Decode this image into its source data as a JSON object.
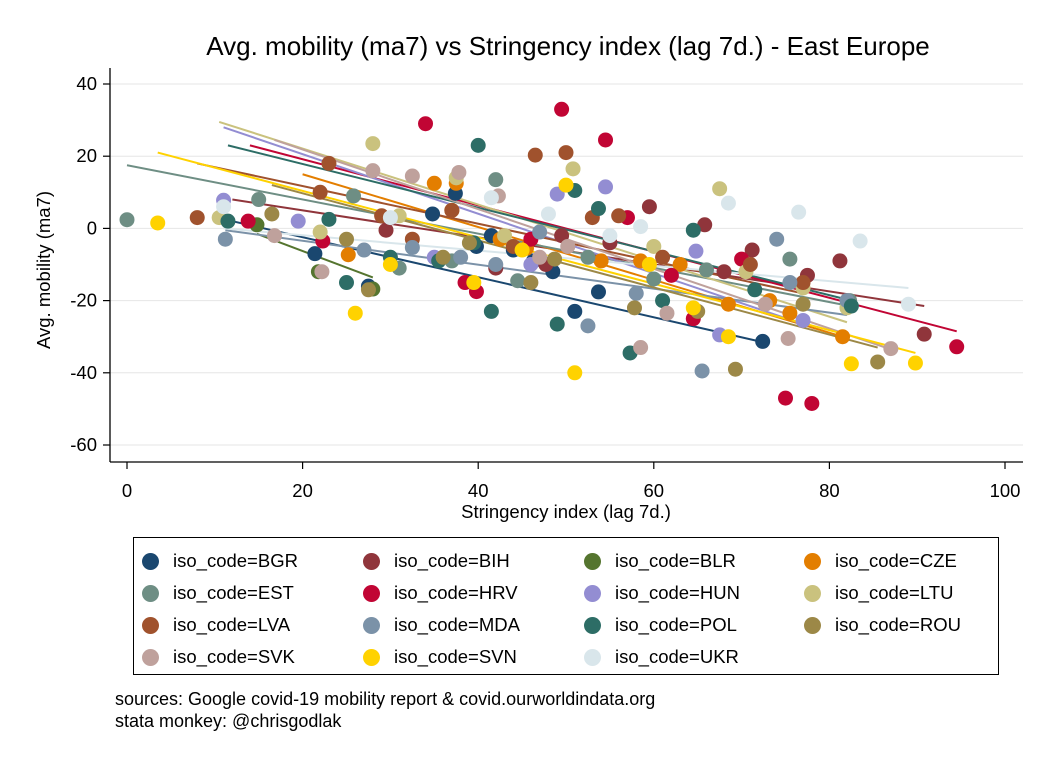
{
  "chart_data": {
    "type": "scatter",
    "title": "Avg. mobility (ma7) vs Stringency index (lag 7d.) - East Europe",
    "xlabel": "Stringency index (lag 7d.)",
    "ylabel": "Avg. mobility (ma7)",
    "xlim": [
      0,
      100
    ],
    "ylim": [
      -60,
      40
    ],
    "x_ticks": [
      "0",
      "20",
      "40",
      "60",
      "80",
      "100"
    ],
    "y_ticks": [
      "40",
      "20",
      "0",
      "-20",
      "-40",
      "-60"
    ],
    "x_tick_values": [
      0,
      20,
      40,
      60,
      80,
      100
    ],
    "y_tick_values": [
      40,
      20,
      0,
      -20,
      -40,
      -60
    ],
    "grid": true,
    "legend_position": "bottom",
    "series": [
      {
        "name": "iso_code=BGR",
        "color": "#1a476f",
        "points": [
          [
            34.8,
            4
          ],
          [
            37.4,
            9.7
          ],
          [
            39.8,
            -5
          ],
          [
            46.3,
            -9
          ],
          [
            48.5,
            -12
          ],
          [
            51,
            -23
          ],
          [
            53.7,
            -17.6
          ],
          [
            72.4,
            -31.3
          ],
          [
            27.5,
            -16
          ],
          [
            21.4,
            -7
          ],
          [
            41.5,
            -2
          ],
          [
            44,
            -6
          ]
        ],
        "fit": [
          [
            12,
            2
          ],
          [
            72.4,
            -31.5
          ]
        ]
      },
      {
        "name": "iso_code=BIH",
        "color": "#90353b",
        "points": [
          [
            29.5,
            -0.5
          ],
          [
            47.7,
            -10
          ],
          [
            49.5,
            -2
          ],
          [
            59.5,
            6
          ],
          [
            65.8,
            1
          ],
          [
            71.2,
            -6
          ],
          [
            77.5,
            -13
          ],
          [
            81.2,
            -9
          ],
          [
            90.8,
            -29.3
          ],
          [
            42,
            -11
          ],
          [
            55,
            -4
          ],
          [
            68,
            -12
          ]
        ],
        "fit": [
          [
            12,
            8
          ],
          [
            90.8,
            -21.5
          ]
        ]
      },
      {
        "name": "iso_code=BLR",
        "color": "#55752f",
        "points": [
          [
            14.8,
            1
          ],
          [
            21.8,
            -12
          ],
          [
            28,
            -16.8
          ]
        ],
        "fit": [
          [
            14.8,
            -1.5
          ],
          [
            28,
            -13.6
          ]
        ]
      },
      {
        "name": "iso_code=CZE",
        "color": "#e37e00",
        "points": [
          [
            25.2,
            -7.3
          ],
          [
            35,
            12.5
          ],
          [
            37.5,
            12.5
          ],
          [
            42.5,
            -3
          ],
          [
            45.5,
            -5.5
          ],
          [
            58.5,
            -9
          ],
          [
            63,
            -10
          ],
          [
            68.5,
            -21
          ],
          [
            73.2,
            -20
          ],
          [
            75.5,
            -23.5
          ],
          [
            81.5,
            -30
          ],
          [
            37,
            5
          ],
          [
            54,
            -9
          ]
        ],
        "fit": [
          [
            20,
            15
          ],
          [
            81.5,
            -30
          ]
        ]
      },
      {
        "name": "iso_code=EST",
        "color": "#6e8e84",
        "points": [
          [
            0,
            2.4
          ],
          [
            25.8,
            9
          ],
          [
            31,
            -11
          ],
          [
            37,
            -9
          ],
          [
            42,
            13.5
          ],
          [
            44.5,
            -14.5
          ],
          [
            52.5,
            -8
          ],
          [
            66,
            -11.5
          ],
          [
            75.5,
            -8.5
          ],
          [
            82.3,
            -20
          ],
          [
            15,
            8
          ],
          [
            60,
            -14
          ]
        ],
        "fit": [
          [
            0,
            17.5
          ],
          [
            82.3,
            -21.5
          ]
        ]
      },
      {
        "name": "iso_code=HRV",
        "color": "#c10534",
        "points": [
          [
            13.8,
            2
          ],
          [
            22.3,
            -3.5
          ],
          [
            34,
            29
          ],
          [
            38.5,
            -15
          ],
          [
            39.8,
            -17.5
          ],
          [
            49.5,
            33
          ],
          [
            54.5,
            24.5
          ],
          [
            62,
            -13
          ],
          [
            64.5,
            -25
          ],
          [
            70,
            -8.5
          ],
          [
            75,
            -47
          ],
          [
            78,
            -48.5
          ],
          [
            94.5,
            -32.8
          ],
          [
            46,
            -3
          ],
          [
            57,
            3
          ]
        ],
        "fit": [
          [
            14,
            23
          ],
          [
            94.5,
            -28.5
          ]
        ]
      },
      {
        "name": "iso_code=HUN",
        "color": "#938dd2",
        "points": [
          [
            11,
            7.8
          ],
          [
            19.5,
            2
          ],
          [
            35,
            -8
          ],
          [
            46,
            -10
          ],
          [
            49,
            9.5
          ],
          [
            54.5,
            11.5
          ],
          [
            64.8,
            -6.3
          ],
          [
            67.5,
            -29.5
          ],
          [
            77,
            -25.5
          ]
        ],
        "fit": [
          [
            11,
            28
          ],
          [
            77,
            -26.5
          ]
        ]
      },
      {
        "name": "iso_code=LTU",
        "color": "#cac27e",
        "points": [
          [
            10.5,
            3
          ],
          [
            28,
            23.5
          ],
          [
            31,
            3.5
          ],
          [
            37.5,
            14
          ],
          [
            50.8,
            16.5
          ],
          [
            67.5,
            11
          ],
          [
            70.5,
            -12
          ],
          [
            77,
            -16.5
          ],
          [
            82,
            -22
          ],
          [
            22,
            -1
          ],
          [
            43,
            -2
          ],
          [
            60,
            -5
          ]
        ],
        "fit": [
          [
            10.5,
            29.5
          ],
          [
            82,
            -26
          ]
        ]
      },
      {
        "name": "iso_code=LVA",
        "color": "#a0522d",
        "points": [
          [
            8,
            3
          ],
          [
            23,
            18
          ],
          [
            29,
            3.5
          ],
          [
            32.5,
            -3
          ],
          [
            37,
            5
          ],
          [
            46.5,
            20.3
          ],
          [
            50,
            21
          ],
          [
            53,
            3
          ],
          [
            56,
            3.5
          ],
          [
            61,
            -8
          ],
          [
            71,
            -10
          ],
          [
            77,
            -15
          ],
          [
            22,
            10
          ],
          [
            44,
            -5
          ]
        ],
        "fit": [
          [
            8,
            18
          ],
          [
            77,
            -18
          ]
        ]
      },
      {
        "name": "iso_code=MDA",
        "color": "#7b92a8",
        "points": [
          [
            11.2,
            -3
          ],
          [
            32.5,
            -5.3
          ],
          [
            38,
            -8
          ],
          [
            42,
            -10
          ],
          [
            47,
            -1
          ],
          [
            52.5,
            -27
          ],
          [
            65.5,
            -39.5
          ],
          [
            74,
            -3
          ],
          [
            75.5,
            -15
          ],
          [
            82,
            -20
          ],
          [
            27,
            -6
          ],
          [
            58,
            -18
          ]
        ],
        "fit": [
          [
            11.2,
            -0.5
          ],
          [
            82,
            -24
          ]
        ]
      },
      {
        "name": "iso_code=POL",
        "color": "#2d6d66",
        "points": [
          [
            11.5,
            2
          ],
          [
            23,
            2.5
          ],
          [
            25,
            -15
          ],
          [
            35.5,
            -9
          ],
          [
            39.5,
            -4
          ],
          [
            40,
            23
          ],
          [
            41.5,
            -23
          ],
          [
            49,
            -26.5
          ],
          [
            51,
            10.5
          ],
          [
            53.7,
            5.5
          ],
          [
            57.3,
            -34.5
          ],
          [
            64.5,
            -0.5
          ],
          [
            71.5,
            -17
          ],
          [
            82.5,
            -21.5
          ],
          [
            30,
            -8
          ],
          [
            61,
            -20
          ]
        ],
        "fit": [
          [
            11.5,
            23
          ],
          [
            82.5,
            -20
          ]
        ]
      },
      {
        "name": "iso_code=ROU",
        "color": "#9c8847",
        "points": [
          [
            16.5,
            4
          ],
          [
            27.5,
            -17
          ],
          [
            36,
            -8
          ],
          [
            39,
            -4
          ],
          [
            48.7,
            -8.5
          ],
          [
            57.8,
            -22
          ],
          [
            65,
            -23
          ],
          [
            69.3,
            -39
          ],
          [
            77,
            -21
          ],
          [
            85.5,
            -37
          ],
          [
            25,
            -3
          ],
          [
            46,
            -15
          ]
        ],
        "fit": [
          [
            16.5,
            12
          ],
          [
            85.5,
            -33
          ]
        ]
      },
      {
        "name": "iso_code=SVK",
        "color": "#bfa19c",
        "points": [
          [
            16.8,
            -2
          ],
          [
            22.2,
            -12
          ],
          [
            32.5,
            14.5
          ],
          [
            37.8,
            15.5
          ],
          [
            42.3,
            9
          ],
          [
            50.2,
            -5
          ],
          [
            58.5,
            -33
          ],
          [
            61.5,
            -23.5
          ],
          [
            72.7,
            -21
          ],
          [
            75.3,
            -30.5
          ],
          [
            87,
            -33.3
          ],
          [
            28,
            16
          ],
          [
            47,
            -8
          ]
        ],
        "fit": [
          [
            16.8,
            24.5
          ],
          [
            87,
            -33.5
          ]
        ]
      },
      {
        "name": "iso_code=SVN",
        "color": "#ffd200",
        "points": [
          [
            3.5,
            1.5
          ],
          [
            26,
            -23.5
          ],
          [
            39.5,
            -15
          ],
          [
            50,
            12
          ],
          [
            51,
            -40
          ],
          [
            59.5,
            -10
          ],
          [
            64.5,
            -22
          ],
          [
            68.5,
            -30
          ],
          [
            82.5,
            -37.5
          ],
          [
            89.8,
            -37.3
          ],
          [
            30,
            -10
          ],
          [
            45,
            -6
          ]
        ],
        "fit": [
          [
            3.5,
            21
          ],
          [
            89.8,
            -34.5
          ]
        ]
      },
      {
        "name": "iso_code=UKR",
        "color": "#d9e6eb",
        "points": [
          [
            11,
            6
          ],
          [
            41.5,
            8.5
          ],
          [
            48,
            4
          ],
          [
            58.5,
            0.5
          ],
          [
            68.5,
            7
          ],
          [
            76.5,
            4.5
          ],
          [
            83.5,
            -3.5
          ],
          [
            89,
            -21
          ],
          [
            30,
            3
          ],
          [
            55,
            -2
          ]
        ],
        "fit": [
          [
            11,
            0
          ],
          [
            89,
            -16.5
          ]
        ]
      }
    ]
  },
  "legend": {
    "items": [
      {
        "label": "iso_code=BGR",
        "color": "#1a476f"
      },
      {
        "label": "iso_code=BIH",
        "color": "#90353b"
      },
      {
        "label": "iso_code=BLR",
        "color": "#55752f"
      },
      {
        "label": "iso_code=CZE",
        "color": "#e37e00"
      },
      {
        "label": "iso_code=EST",
        "color": "#6e8e84"
      },
      {
        "label": "iso_code=HRV",
        "color": "#c10534"
      },
      {
        "label": "iso_code=HUN",
        "color": "#938dd2"
      },
      {
        "label": "iso_code=LTU",
        "color": "#cac27e"
      },
      {
        "label": "iso_code=LVA",
        "color": "#a0522d"
      },
      {
        "label": "iso_code=MDA",
        "color": "#7b92a8"
      },
      {
        "label": "iso_code=POL",
        "color": "#2d6d66"
      },
      {
        "label": "iso_code=ROU",
        "color": "#9c8847"
      },
      {
        "label": "iso_code=SVK",
        "color": "#bfa19c"
      },
      {
        "label": "iso_code=SVN",
        "color": "#ffd200"
      },
      {
        "label": "iso_code=UKR",
        "color": "#d9e6eb"
      }
    ]
  },
  "notes": {
    "line1": "sources: Google covid-19 mobility report & covid.ourworldindata.org",
    "line2": "stata monkey: @chrisgodlak"
  }
}
